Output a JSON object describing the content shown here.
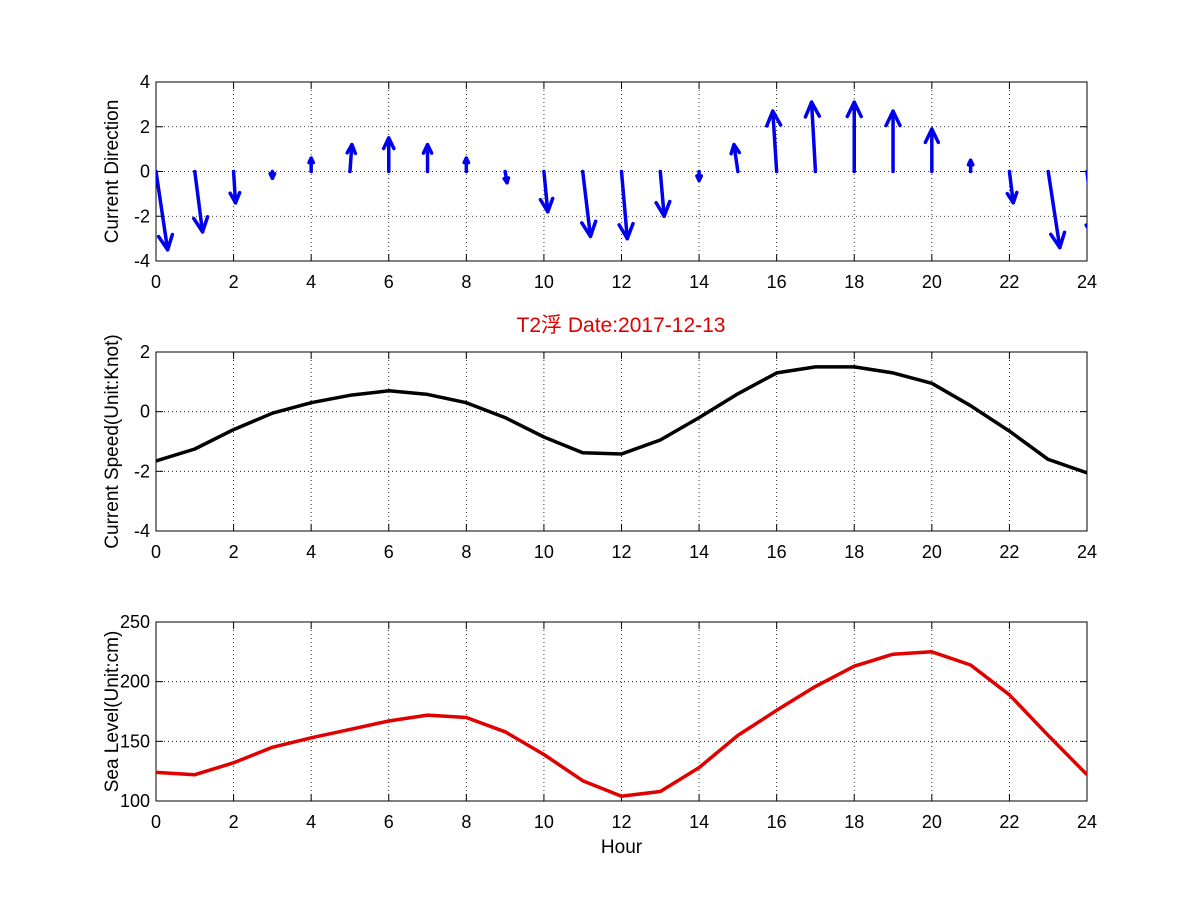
{
  "figure": {
    "title": "T2浮    Date:2017-12-13",
    "title_color": "#e00000"
  },
  "chart_data": [
    {
      "type": "quiver",
      "xlabel": "",
      "ylabel": "Current Direction",
      "xlim": [
        0,
        24
      ],
      "ylim": [
        -4,
        4
      ],
      "xticks": [
        0,
        2,
        4,
        6,
        8,
        10,
        12,
        14,
        16,
        18,
        20,
        22,
        24
      ],
      "yticks": [
        -4,
        -2,
        0,
        2,
        4
      ],
      "grid": true,
      "color": "#0000ee",
      "x": [
        0,
        1,
        2,
        3,
        4,
        5,
        6,
        7,
        8,
        9,
        10,
        11,
        12,
        13,
        14,
        15,
        16,
        17,
        18,
        19,
        20,
        21,
        22,
        23,
        24
      ],
      "u": [
        0.3,
        0.2,
        0.05,
        0.0,
        0.0,
        0.05,
        0.0,
        0.0,
        0.0,
        0.05,
        0.1,
        0.2,
        0.15,
        0.1,
        0.0,
        -0.1,
        -0.1,
        -0.1,
        0.0,
        0.0,
        0.0,
        0.0,
        0.1,
        0.3,
        0.2
      ],
      "v": [
        -3.5,
        -2.7,
        -1.4,
        -0.3,
        0.6,
        1.2,
        1.5,
        1.2,
        0.6,
        -0.5,
        -1.8,
        -2.9,
        -3.0,
        -2.0,
        -0.4,
        1.2,
        2.7,
        3.1,
        3.1,
        2.7,
        1.9,
        0.5,
        -1.4,
        -3.4,
        -3.0
      ]
    },
    {
      "type": "line",
      "xlabel": "",
      "ylabel": "Current Speed(Unit:Knot)",
      "xlim": [
        0,
        24
      ],
      "ylim": [
        -4,
        2
      ],
      "xticks": [
        0,
        2,
        4,
        6,
        8,
        10,
        12,
        14,
        16,
        18,
        20,
        22,
        24
      ],
      "yticks": [
        -4,
        -2,
        0,
        2
      ],
      "grid": true,
      "color": "#000000",
      "x": [
        0,
        1,
        2,
        3,
        4,
        5,
        6,
        7,
        8,
        9,
        10,
        11,
        12,
        13,
        14,
        15,
        16,
        17,
        18,
        19,
        20,
        21,
        22,
        23,
        24
      ],
      "values": [
        -1.65,
        -1.25,
        -0.6,
        -0.05,
        0.3,
        0.55,
        0.7,
        0.58,
        0.3,
        -0.2,
        -0.85,
        -1.38,
        -1.42,
        -0.95,
        -0.2,
        0.6,
        1.3,
        1.5,
        1.5,
        1.3,
        0.95,
        0.2,
        -0.65,
        -1.6,
        -2.05
      ]
    },
    {
      "type": "line",
      "xlabel": "Hour",
      "ylabel": "Sea Level(Unit:cm)",
      "xlim": [
        0,
        24
      ],
      "ylim": [
        100,
        250
      ],
      "xticks": [
        0,
        2,
        4,
        6,
        8,
        10,
        12,
        14,
        16,
        18,
        20,
        22,
        24
      ],
      "yticks": [
        100,
        150,
        200,
        250
      ],
      "grid": true,
      "color": "#e00000",
      "x": [
        0,
        1,
        2,
        3,
        4,
        5,
        6,
        7,
        8,
        9,
        10,
        11,
        12,
        13,
        14,
        15,
        16,
        17,
        18,
        19,
        20,
        21,
        22,
        23,
        24
      ],
      "values": [
        124,
        122,
        132,
        145,
        153,
        160,
        167,
        172,
        170,
        158,
        139,
        117,
        104,
        108,
        128,
        155,
        176,
        196,
        213,
        223,
        225,
        214,
        189,
        155,
        122
      ]
    }
  ]
}
